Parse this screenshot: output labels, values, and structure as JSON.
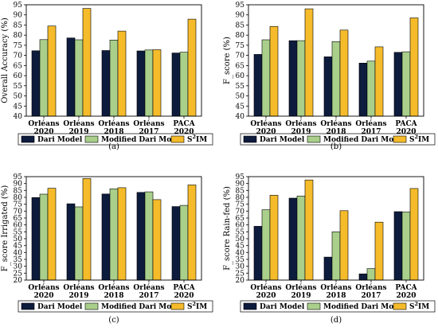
{
  "figure": {
    "colors": {
      "dari": "#0d1b3d",
      "modified": "#a9cf8b",
      "s2im": "#f5bb2a"
    }
  },
  "chart_data": [
    {
      "type": "bar",
      "panel_label": "(a)",
      "ylabel": "Overall Accuracy (%)",
      "ylim": [
        40,
        95
      ],
      "yticks": [
        40,
        45,
        50,
        55,
        60,
        65,
        70,
        75,
        80,
        85,
        90,
        95
      ],
      "grid": false,
      "categories": [
        [
          "Orléans",
          "2020"
        ],
        [
          "Orléans",
          "2019"
        ],
        [
          "Orléans",
          "2018"
        ],
        [
          "Orléans",
          "2017"
        ],
        [
          "PACA",
          "2020"
        ]
      ],
      "series": [
        {
          "name": "Dari Model",
          "values": [
            72.3,
            78.6,
            72.4,
            72.2,
            71.2
          ]
        },
        {
          "name": "Modified Dari Model",
          "values": [
            77.8,
            77.7,
            77.6,
            72.7,
            71.6
          ]
        },
        {
          "name": "S²IM",
          "values": [
            84.5,
            93.2,
            82.0,
            72.8,
            87.9
          ]
        }
      ]
    },
    {
      "type": "bar",
      "panel_label": "(b)",
      "ylabel": "F_score (%)",
      "ylim": [
        40,
        95
      ],
      "yticks": [
        40,
        45,
        50,
        55,
        60,
        65,
        70,
        75,
        80,
        85,
        90,
        95
      ],
      "grid": false,
      "categories": [
        [
          "Orléans",
          "2020"
        ],
        [
          "Orléans",
          "2019"
        ],
        [
          "Orléans",
          "2018"
        ],
        [
          "Orléans",
          "2017"
        ],
        [
          "PACA",
          "2020"
        ]
      ],
      "series": [
        {
          "name": "Dari Model",
          "values": [
            70.5,
            77.3,
            69.3,
            66.2,
            71.5
          ]
        },
        {
          "name": "Modified Dari Model",
          "values": [
            77.7,
            77.3,
            76.8,
            67.2,
            71.8
          ]
        },
        {
          "name": "S²IM",
          "values": [
            84.3,
            93.0,
            82.5,
            74.2,
            88.5
          ]
        }
      ]
    },
    {
      "type": "bar",
      "panel_label": "(c)",
      "ylabel": "F_score Irrigated (%)",
      "ylim": [
        20,
        95
      ],
      "yticks": [
        20,
        25,
        30,
        35,
        40,
        45,
        50,
        55,
        60,
        65,
        70,
        75,
        80,
        85,
        90,
        95
      ],
      "grid": false,
      "categories": [
        [
          "Orléans",
          "2020"
        ],
        [
          "Orléans",
          "2019"
        ],
        [
          "Orléans",
          "2018"
        ],
        [
          "Orléans",
          "2017"
        ],
        [
          "PACA",
          "2020"
        ]
      ],
      "series": [
        {
          "name": "Dari Model",
          "values": [
            79.8,
            75.3,
            82.4,
            83.6,
            73.3
          ]
        },
        {
          "name": "Modified Dari Model",
          "values": [
            82.3,
            73.1,
            86.2,
            84.0,
            74.2
          ]
        },
        {
          "name": "S²IM",
          "values": [
            86.6,
            93.6,
            87.0,
            78.3,
            89.0
          ]
        }
      ]
    },
    {
      "type": "bar",
      "panel_label": "(d)",
      "ylabel": "F_score Rain-fed (%)",
      "ylim": [
        20,
        95
      ],
      "yticks": [
        20,
        25,
        30,
        35,
        40,
        45,
        50,
        55,
        60,
        65,
        70,
        75,
        80,
        85,
        90,
        95
      ],
      "grid": false,
      "categories": [
        [
          "Orléans",
          "2020"
        ],
        [
          "Orléans",
          "2019"
        ],
        [
          "Orléans",
          "2018"
        ],
        [
          "Orléans",
          "2017"
        ],
        [
          "PACA",
          "2020"
        ]
      ],
      "series": [
        {
          "name": "Dari Model",
          "values": [
            59.0,
            79.4,
            36.7,
            24.5,
            69.6
          ]
        },
        {
          "name": "Modified Dari Model",
          "values": [
            71.0,
            80.9,
            55.0,
            28.3,
            69.4
          ]
        },
        {
          "name": "S²IM",
          "values": [
            81.5,
            92.6,
            70.3,
            62.0,
            86.4
          ]
        }
      ]
    }
  ]
}
